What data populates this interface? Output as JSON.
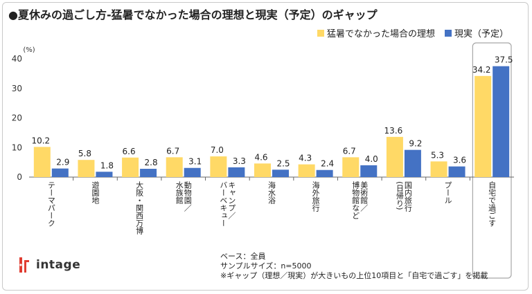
{
  "header": {
    "title": "●夏休みの過ごし方-猛暑でなかった場合の理想と現実（予定）のギャップ",
    "unit": "(%)"
  },
  "colors": {
    "ideal": "#ffd966",
    "actual": "#4472c4",
    "axis": "#666666",
    "highlight": "#a6a6a6"
  },
  "footer": {
    "base": "ベース：全員",
    "sample": "サンプルサイズ：n=5000",
    "note": "※ギャップ（理想／現実）が大きいもの上位10項目と「自宅で過ごす」を掲載"
  },
  "logo": {
    "text": "intage",
    "icon": "intage-logo-icon"
  },
  "chart_data": {
    "type": "bar",
    "title": "●夏休みの過ごし方-猛暑でなかった場合の理想と現実（予定）のギャップ",
    "ylabel": "(%)",
    "ylim": [
      0,
      40
    ],
    "yticks": [
      0,
      10,
      20,
      30,
      40
    ],
    "categories": [
      "テーマパーク",
      "遊園地",
      "大阪・関西万博",
      "動物園／水族館",
      "キャンプ／バーベキュー",
      "海水浴",
      "海外旅行",
      "美術館／博物館など",
      "国内旅行(日帰り)",
      "プール",
      "自宅で過ごす"
    ],
    "category_lines": [
      [
        "テーマパーク"
      ],
      [
        "遊園地"
      ],
      [
        "大阪・関西万博"
      ],
      [
        "動物園／",
        "水族館"
      ],
      [
        "キャンプ／",
        "バーベキュー"
      ],
      [
        "海水浴"
      ],
      [
        "海外旅行"
      ],
      [
        "美術館／",
        "博物館など"
      ],
      [
        "国内旅行",
        "(日帰り)"
      ],
      [
        "プール"
      ],
      [
        "自宅で過ごす"
      ]
    ],
    "series": [
      {
        "name": "猛暑でなかった場合の理想",
        "values": [
          10.2,
          5.8,
          6.6,
          6.7,
          7.0,
          4.6,
          4.3,
          6.7,
          13.6,
          5.3,
          34.2
        ]
      },
      {
        "name": "現実（予定）",
        "values": [
          2.9,
          1.8,
          2.8,
          3.1,
          3.3,
          2.5,
          2.4,
          4.0,
          9.2,
          3.6,
          37.5
        ]
      }
    ],
    "highlighted_category": "自宅で過ごす",
    "grid": false,
    "legend_position": "top-right"
  }
}
